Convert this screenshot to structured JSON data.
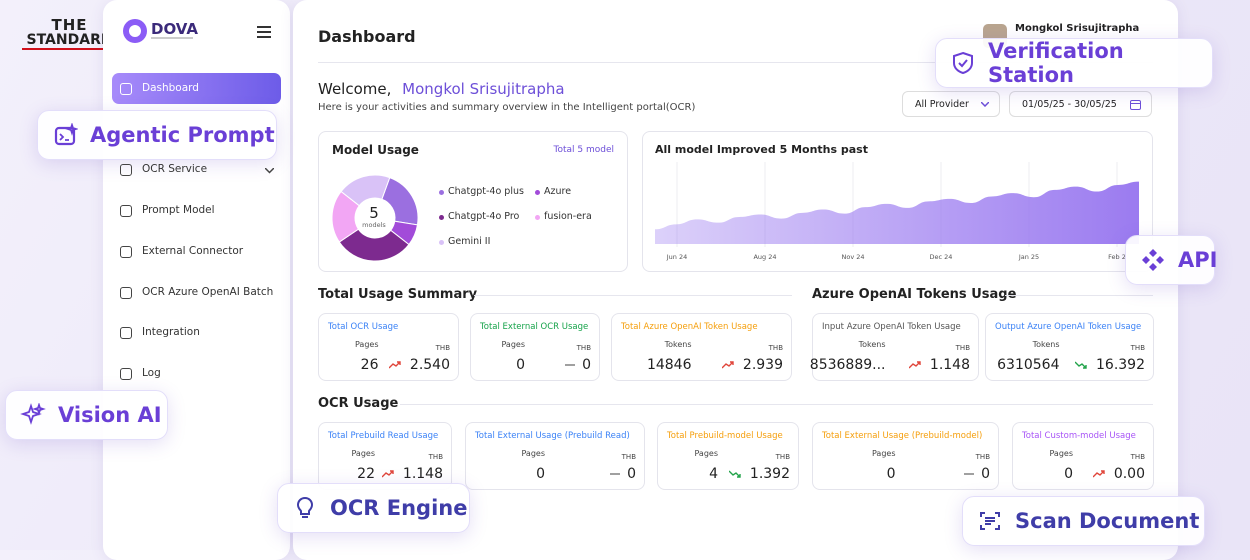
{
  "brand": {
    "line1": "THE",
    "line2": "STANDARD"
  },
  "logo": {
    "name": "DOVA"
  },
  "sidebar": {
    "items": [
      "Dashboard",
      "OCR Service",
      "Prompt Model",
      "External Connector",
      "OCR Azure OpenAI Batch",
      "Integration",
      "Log"
    ]
  },
  "header": {
    "title": "Dashboard",
    "user": "Mongkol Srisujitrapha"
  },
  "welcome": {
    "greeting": "Welcome,",
    "name": "Mongkol Srisujitrapha",
    "subtitle": "Here is your activities and summary overview in the Intelligent portal(OCR)"
  },
  "filters": {
    "provider": "All Provider",
    "date_range": "01/05/25 - 30/05/25"
  },
  "model_usage": {
    "title": "Model Usage",
    "total": "Total 5 model",
    "center_value": "5",
    "center_label": "models",
    "type": "pie",
    "series": [
      {
        "name": "Chatgpt-4o plus",
        "color": "#9b6fe0",
        "value": 22
      },
      {
        "name": "Azure",
        "color": "#a24bd9",
        "value": 8
      },
      {
        "name": "Chatgpt-4o Pro",
        "color": "#7d2a8f",
        "value": 30
      },
      {
        "name": "fusion-era",
        "color": "#f2a6f4",
        "value": 20
      },
      {
        "name": "Gemini II",
        "color": "#d9c2f7",
        "value": 20
      }
    ]
  },
  "improvement_chart": {
    "type": "area",
    "title": "All model Improved 5 Months past",
    "x_labels": [
      "Jun 24",
      "Aug 24",
      "Nov 24",
      "Dec 24",
      "Jan 25",
      "Feb 2"
    ],
    "values": [
      18,
      24,
      30,
      26,
      33,
      36,
      31,
      38,
      42,
      37,
      45,
      49,
      44,
      52,
      55,
      50,
      58,
      62,
      57,
      66,
      70,
      64,
      72,
      76
    ],
    "ylim": [
      0,
      100
    ],
    "color": "#9b7bf0"
  },
  "total_usage_summary": {
    "title": "Total Usage Summary",
    "cards": [
      {
        "title": "Total OCR Usage",
        "title_color": "#3b82f6",
        "unit": "Pages",
        "currency": "THB",
        "value": "26",
        "amount": "2.540",
        "trend": "up"
      },
      {
        "title": "Total External OCR Usage",
        "title_color": "#16a34a",
        "unit": "Pages",
        "currency": "THB",
        "value": "0",
        "amount": "0",
        "trend": "flat"
      },
      {
        "title": "Total Azure OpenAI Token Usage",
        "title_color": "#f59e0b",
        "unit": "Tokens",
        "currency": "THB",
        "value": "14846",
        "amount": "2.939",
        "trend": "up"
      }
    ]
  },
  "azure_tokens_usage": {
    "title": "Azure OpenAI Tokens Usage",
    "cards": [
      {
        "title": "Input Azure OpenAI Token Usage",
        "title_color": "#555555",
        "unit": "Tokens",
        "currency": "THB",
        "value": "8536889...",
        "amount": "1.148",
        "trend": "up"
      },
      {
        "title": "Output Azure OpenAI Token Usage",
        "title_color": "#3b82f6",
        "unit": "Tokens",
        "currency": "THB",
        "value": "6310564",
        "amount": "16.392",
        "trend": "down"
      }
    ]
  },
  "ocr_usage": {
    "title": "OCR Usage",
    "cards": [
      {
        "title": "Total Prebuild Read Usage",
        "title_color": "#3b82f6",
        "unit": "Pages",
        "currency": "THB",
        "value": "22",
        "amount": "1.148",
        "trend": "up"
      },
      {
        "title": "Total External Usage (Prebuild Read)",
        "title_color": "#3b82f6",
        "unit": "Pages",
        "currency": "THB",
        "value": "0",
        "amount": "0",
        "trend": "flat"
      },
      {
        "title": "Total Prebuild-model Usage",
        "title_color": "#f59e0b",
        "unit": "Pages",
        "currency": "THB",
        "value": "4",
        "amount": "1.392",
        "trend": "down"
      },
      {
        "title": "Total External Usage (Prebuild-model)",
        "title_color": "#f59e0b",
        "unit": "Pages",
        "currency": "THB",
        "value": "0",
        "amount": "0",
        "trend": "flat"
      },
      {
        "title": "Total Custom-model Usage",
        "title_color": "#a855f7",
        "unit": "Pages",
        "currency": "THB",
        "value": "0",
        "amount": "0.00",
        "trend": "up"
      }
    ]
  },
  "feature_badges": [
    "Agentic Prompt",
    "Verification Station",
    "API",
    "Vision AI",
    "OCR Engine",
    "Scan Document"
  ]
}
